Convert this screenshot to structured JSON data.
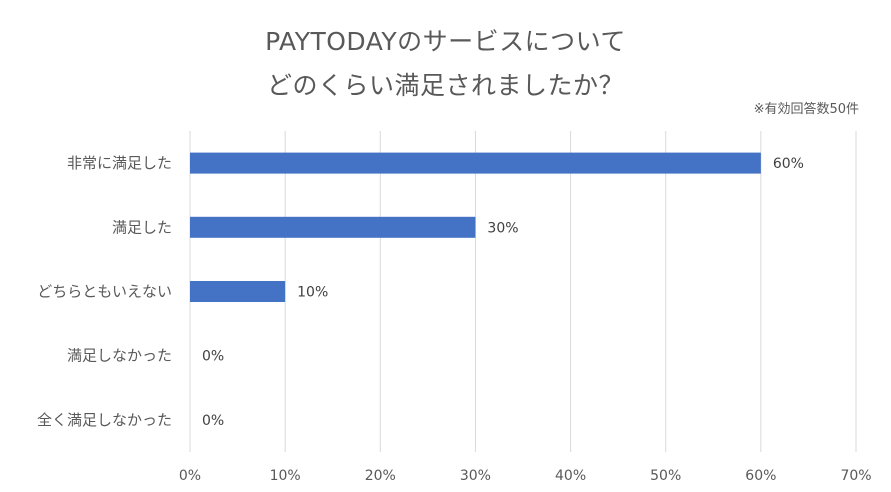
{
  "chart_data": {
    "type": "bar",
    "orientation": "horizontal",
    "title_lines": [
      "PAYTODAYのサービスについて",
      "どのくらい満足されましたか？"
    ],
    "note": "※有効回答数50件",
    "categories": [
      "非常に満足した",
      "満足した",
      "どちらともいえない",
      "満足しなかった",
      "全く満足しなかった"
    ],
    "values": [
      60,
      30,
      10,
      0,
      0
    ],
    "value_labels": [
      "60%",
      "30%",
      "10%",
      "0%",
      "0%"
    ],
    "xticks": [
      "0%",
      "10%",
      "20%",
      "30%",
      "40%",
      "50%",
      "60%",
      "70%"
    ],
    "xlim": [
      0,
      70
    ],
    "grid": "vertical",
    "legend": "none",
    "colors": {
      "bar": "#4472C4",
      "grid": "#D9D9D9",
      "text": "#595959",
      "label": "#404040"
    }
  }
}
